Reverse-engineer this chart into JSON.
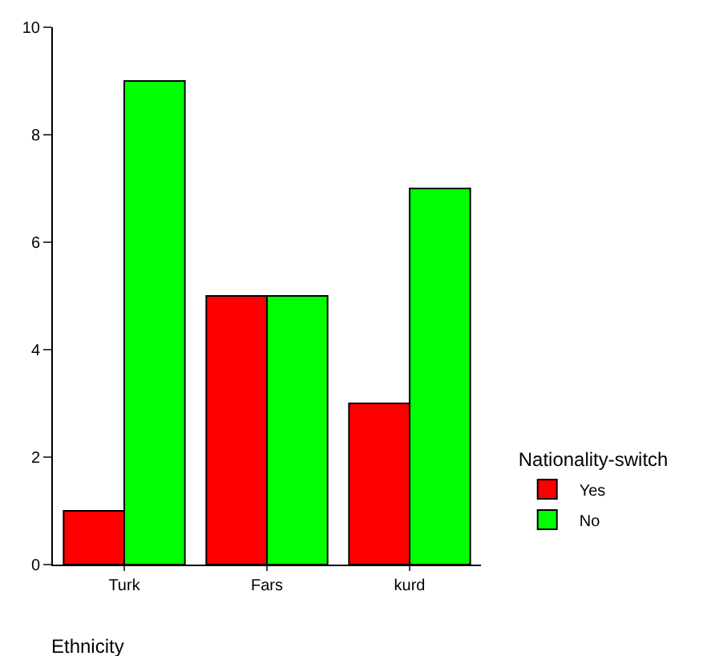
{
  "chart_data": {
    "type": "bar",
    "categories": [
      "Turk",
      "Fars",
      "kurd"
    ],
    "series": [
      {
        "name": "Yes",
        "color": "#ff0000",
        "values": [
          1,
          5,
          3
        ]
      },
      {
        "name": "No",
        "color": "#00ff00",
        "values": [
          9,
          5,
          7
        ]
      }
    ],
    "xlabel": "Ethnicity",
    "legend_title": "Nationality-switch",
    "legend": "right",
    "ylim": [
      0,
      10
    ],
    "yticks": [
      0,
      2,
      4,
      6,
      8,
      10
    ],
    "grid": false
  }
}
